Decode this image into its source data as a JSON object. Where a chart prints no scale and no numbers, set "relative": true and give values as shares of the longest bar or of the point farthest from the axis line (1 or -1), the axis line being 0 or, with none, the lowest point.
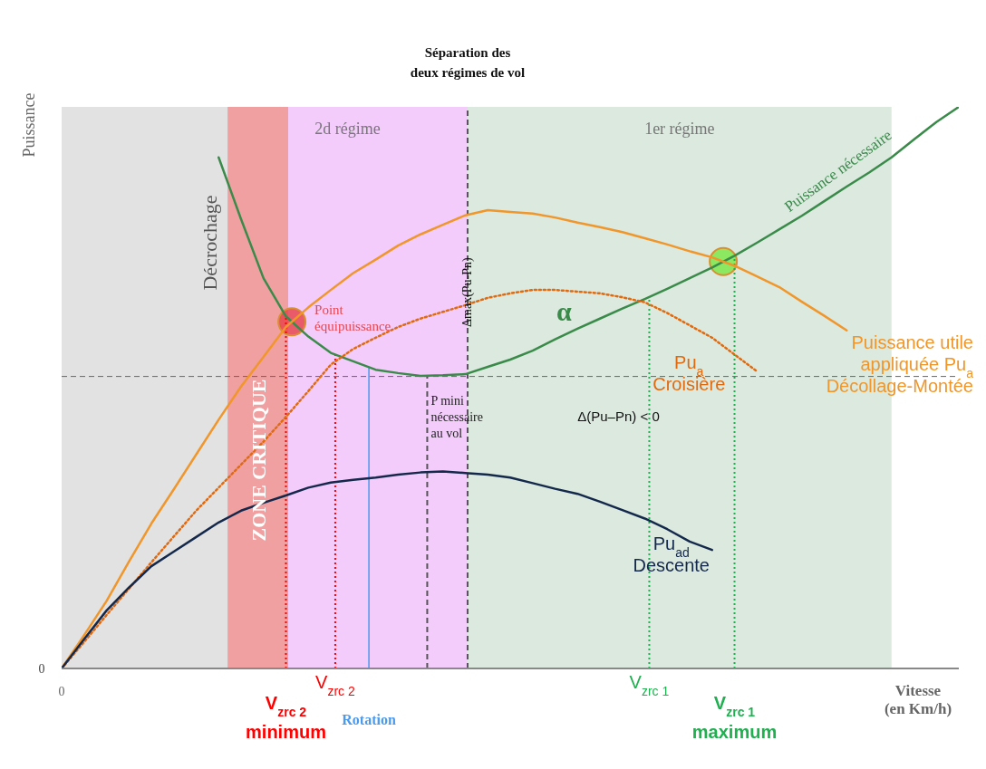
{
  "chart_data": {
    "type": "line",
    "relative": true,
    "xlabel": "Vitesse\n(en Km/h)",
    "ylabel": "Puissance",
    "marker": "none",
    "categories": [
      null,
      null,
      null,
      null,
      null,
      null,
      null,
      null,
      null,
      null,
      null,
      null,
      null,
      null,
      null,
      null,
      null,
      null,
      null,
      null,
      null,
      null,
      null,
      null,
      null,
      null,
      null,
      null,
      null,
      null,
      null,
      null,
      null,
      null,
      null,
      null,
      null,
      null,
      null,
      null,
      null
    ],
    "series": [
      {
        "name": "Puissance nécessaire",
        "color": "#3a8a4a",
        "values": [
          null,
          null,
          null,
          null,
          null,
          null,
          null,
          0.91,
          0.8,
          0.695,
          0.627,
          0.591,
          0.562,
          0.547,
          0.532,
          0.526,
          0.521,
          0.522,
          0.524,
          0.537,
          0.55,
          0.566,
          0.586,
          0.605,
          0.623,
          0.641,
          0.658,
          0.676,
          0.695,
          0.714,
          0.735,
          0.758,
          0.782,
          0.806,
          0.832,
          0.858,
          0.883,
          0.91,
          0.942,
          0.973,
          1.0
        ]
      },
      {
        "name": "Puissance utile\nappliquée Pu$_{a}$\nDécollage-Montée",
        "color": "#f0962a",
        "values": [
          0,
          0.059,
          0.12,
          0.19,
          0.258,
          0.319,
          0.381,
          0.443,
          0.502,
          0.555,
          0.608,
          0.643,
          0.674,
          0.704,
          0.728,
          0.753,
          0.773,
          0.79,
          0.807,
          0.816,
          0.813,
          0.81,
          0.803,
          0.794,
          0.786,
          0.777,
          0.766,
          0.755,
          0.743,
          0.732,
          0.717,
          0.698,
          0.679,
          0.653,
          0.628,
          0.602,
          null,
          null,
          null,
          null,
          null
        ]
      },
      {
        "name": "Pu$_{a}$\nCroisière",
        "color": "#e06a10",
        "line_style": "dotted",
        "values": [
          0,
          0.047,
          0.095,
          0.142,
          0.189,
          0.235,
          0.281,
          0.322,
          0.363,
          0.404,
          0.448,
          0.494,
          0.541,
          0.569,
          0.589,
          0.608,
          0.623,
          0.635,
          0.647,
          0.66,
          0.668,
          0.674,
          0.674,
          0.671,
          0.668,
          0.661,
          0.652,
          0.633,
          0.611,
          0.589,
          0.559,
          0.529,
          null,
          null,
          null,
          null,
          null,
          null,
          null,
          null,
          null
        ]
      },
      {
        "name": "Pu$_{ad}$\nDescente",
        "color": "#14284b",
        "values": [
          0,
          0.052,
          0.103,
          0.144,
          0.182,
          0.208,
          0.234,
          0.26,
          0.281,
          0.295,
          0.308,
          0.322,
          0.331,
          0.336,
          0.34,
          0.345,
          0.349,
          0.351,
          0.348,
          0.345,
          0.34,
          0.33,
          0.32,
          0.311,
          0.297,
          0.282,
          0.267,
          0.248,
          0.226,
          0.211,
          null,
          null,
          null,
          null,
          null,
          null,
          null,
          null,
          null,
          null,
          null
        ]
      }
    ],
    "ref_lines": [
      {
        "axis": "y",
        "value": 0.52,
        "color": "#666666",
        "line_style": "dashed"
      }
    ],
    "annotations": [
      "0",
      "0",
      "Δmax(Pu-Pn)",
      "α",
      "Δ(Pu–Pn) < 0",
      "Point\néquipuissance",
      "Décrochage",
      "2d régime",
      "ZONE CRITIQUE",
      "1er régime",
      "Séparation des\ndeux régimes de vol",
      "P mini\nnécessaire\nau vol",
      "V$_{zrc 2}$\nminimum",
      "V$_{zrc 2}$",
      "Rotation",
      "V$_{zrc 1}$",
      "V$_{zrc 1}$\nmaximum"
    ]
  }
}
